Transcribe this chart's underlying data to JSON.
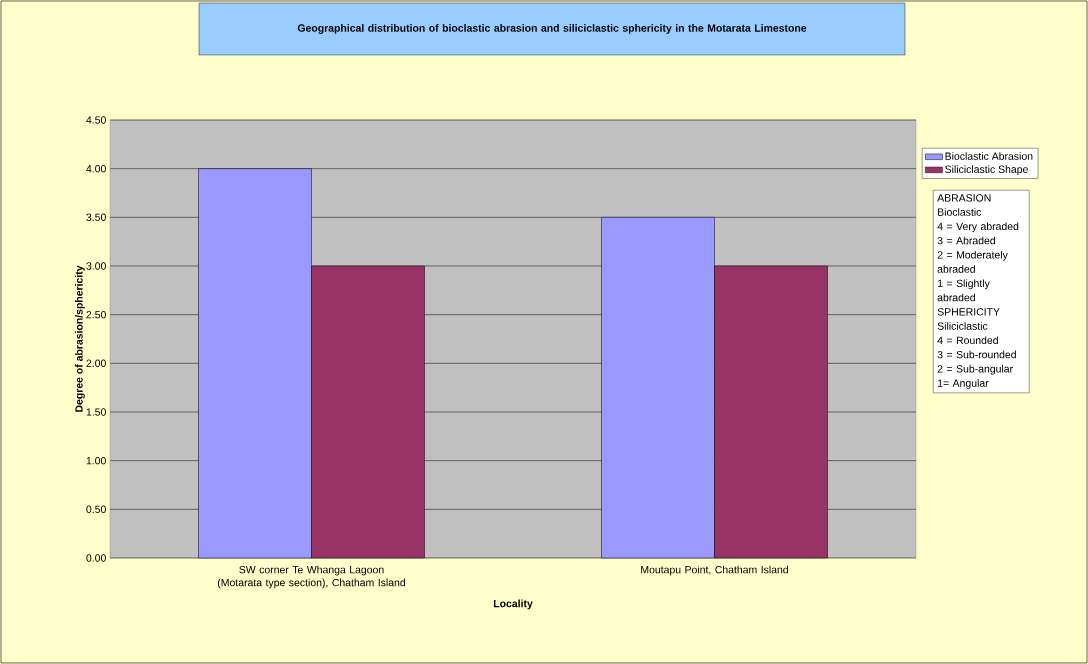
{
  "chart_data": {
    "type": "bar",
    "title": "Geographical distribution of bioclastic abrasion and siliciclastic sphericity in the Motarata Limestone",
    "xlabel": "Locality",
    "ylabel": "Degree of abrasion/sphericity",
    "categories": [
      "SW corner Te Whanga Lagoon (Motarata type section), Chatham Island",
      "Moutapu Point, Chatham Island"
    ],
    "series": [
      {
        "name": "Bioclastic Abrasion",
        "color": "#9999ff",
        "values": [
          4.0,
          3.5
        ]
      },
      {
        "name": "Siliciclastic Shape",
        "color": "#993366",
        "values": [
          3.0,
          3.0
        ]
      }
    ],
    "ylim": [
      0,
      4.5
    ],
    "yticks": [
      {
        "value": 0,
        "label": "0.00"
      },
      {
        "value": 0.5,
        "label": "0.50"
      },
      {
        "value": 1,
        "label": "1.00"
      },
      {
        "value": 1.5,
        "label": "1.50"
      },
      {
        "value": 2,
        "label": "2.00"
      },
      {
        "value": 2.5,
        "label": "2.50"
      },
      {
        "value": 3,
        "label": "3.00"
      },
      {
        "value": 3.5,
        "label": "3.50"
      },
      {
        "value": 4,
        "label": "4.00"
      },
      {
        "value": 4.5,
        "label": "4.50"
      }
    ],
    "grid": "y",
    "legend": "right",
    "annotations": [
      "ABRASION",
      "Bioclastic",
      "4 = Very abraded",
      "3 = Abraded",
      "2 = Moderately abraded",
      "1 = Slightly abraded",
      "SPHERICITY",
      "Siliciclastic",
      "4 = Rounded",
      "3 = Sub-rounded",
      "2 = Sub-angular",
      "1= Angular"
    ]
  }
}
